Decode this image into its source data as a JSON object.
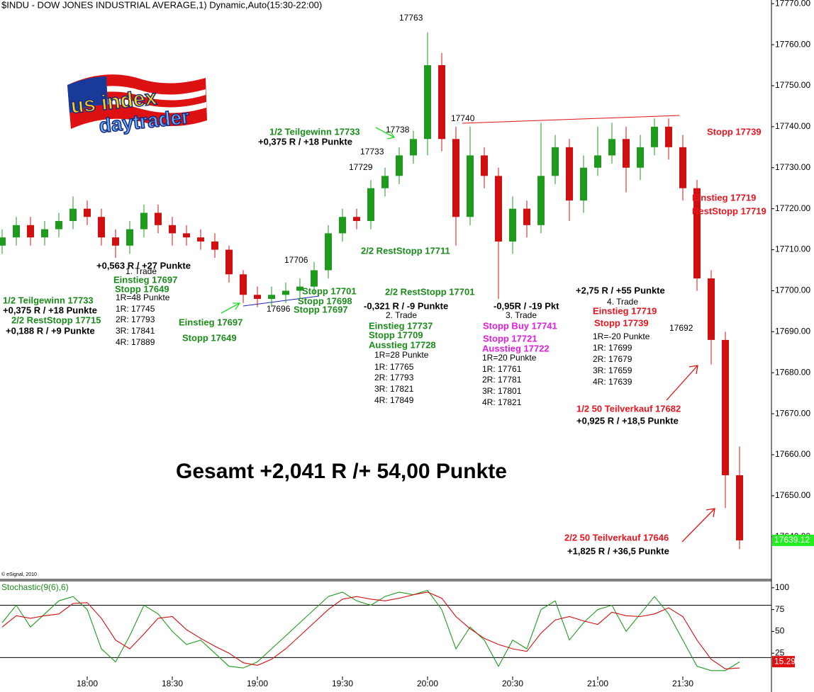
{
  "chart_data": [
    {
      "type": "candlestick",
      "title": "$INDU - DOW JONES INDUSTRIAL AVERAGE,1) Dynamic,Auto(15:30-22:00)",
      "source": "© eSignal, 2010",
      "x": [
        1050,
        1055,
        1060,
        1065,
        1070,
        1075,
        1080,
        1085,
        1090,
        1095,
        1100,
        1105,
        1110,
        1115,
        1120,
        1125,
        1130,
        1135,
        1140,
        1145,
        1150,
        1155,
        1160,
        1165,
        1170,
        1175,
        1180,
        1185,
        1190,
        1195,
        1200,
        1205,
        1210,
        1215,
        1220,
        1225,
        1230,
        1235,
        1240,
        1245,
        1250,
        1255,
        1260,
        1265,
        1270,
        1275,
        1280,
        1285,
        1290,
        1295,
        1300,
        1305,
        1310
      ],
      "open": [
        17711,
        17713,
        17716,
        17713,
        17715,
        17717,
        17720,
        17718,
        17713,
        17711,
        17715,
        17719,
        17716,
        17714,
        17713,
        17712,
        17710,
        17704,
        17699,
        17698,
        17699,
        17700,
        17701,
        17705,
        17714,
        17718,
        17717,
        17725,
        17728,
        17733,
        17737,
        17755,
        17737,
        17718,
        17733,
        17728,
        17712,
        17720,
        17716,
        17728,
        17735,
        17722,
        17730,
        17733,
        17737,
        17730,
        17735,
        17740,
        17735,
        17725,
        17703,
        17688,
        17655
      ],
      "high": [
        17715,
        17718,
        17718,
        17717,
        17719,
        17723,
        17722,
        17720,
        17715,
        17717,
        17721,
        17721,
        17718,
        17716,
        17715,
        17714,
        17711,
        17705,
        17701,
        17701,
        17702,
        17703,
        17707,
        17716,
        17720,
        17720,
        17727,
        17730,
        17735,
        17739,
        17763,
        17758,
        17740,
        17740,
        17735,
        17730,
        17723,
        17722,
        17741,
        17738,
        17737,
        17733,
        17740,
        17741,
        17740,
        17738,
        17742,
        17742,
        17738,
        17727,
        17705,
        17690,
        17662
      ],
      "low": [
        17709,
        17711,
        17711,
        17711,
        17713,
        17715,
        17716,
        17711,
        17708,
        17709,
        17713,
        17714,
        17711,
        17711,
        17710,
        17708,
        17702,
        17697,
        17696,
        17696,
        17697,
        17698,
        17699,
        17703,
        17712,
        17715,
        17715,
        17723,
        17726,
        17731,
        17733,
        17734,
        17711,
        17716,
        17725,
        17698,
        17709,
        17713,
        17714,
        17726,
        17717,
        17719,
        17728,
        17731,
        17724,
        17727,
        17733,
        17732,
        17722,
        17700,
        17682,
        17647,
        17637
      ],
      "close": [
        17713,
        17716,
        17713,
        17715,
        17717,
        17720,
        17718,
        17713,
        17711,
        17715,
        17719,
        17716,
        17714,
        17713,
        17712,
        17710,
        17704,
        17699,
        17698,
        17699,
        17700,
        17701,
        17705,
        17714,
        17718,
        17717,
        17725,
        17728,
        17733,
        17737,
        17755,
        17737,
        17718,
        17733,
        17728,
        17712,
        17720,
        17716,
        17728,
        17735,
        17722,
        17730,
        17733,
        17737,
        17730,
        17735,
        17740,
        17735,
        17725,
        17703,
        17688,
        17655,
        17639.12
      ],
      "up_color": "#1f9a1f",
      "down_color": "#d01010",
      "xlim": [
        1049.25,
        1321.25
      ],
      "xticks": [
        {
          "value": 1080,
          "label": "18:00"
        },
        {
          "value": 1110,
          "label": "18:30"
        },
        {
          "value": 1140,
          "label": "19:00"
        },
        {
          "value": 1170,
          "label": "19:30"
        },
        {
          "value": 1200,
          "label": "20:00"
        },
        {
          "value": 1230,
          "label": "20:30"
        },
        {
          "value": 1260,
          "label": "21:00"
        },
        {
          "value": 1290,
          "label": "21:30"
        }
      ],
      "ylim": [
        17629.6,
        17770.9
      ],
      "yticks": [
        {
          "value": 17770,
          "label": "17770.00"
        },
        {
          "value": 17760,
          "label": "17760.00"
        },
        {
          "value": 17750,
          "label": "17750.00"
        },
        {
          "value": 17740,
          "label": "17740.00"
        },
        {
          "value": 17730,
          "label": "17730.00"
        },
        {
          "value": 17720,
          "label": "17720.00"
        },
        {
          "value": 17710,
          "label": "17710.00"
        },
        {
          "value": 17700,
          "label": "17700.00"
        },
        {
          "value": 17690,
          "label": "17690.00"
        },
        {
          "value": 17680,
          "label": "17680.00"
        },
        {
          "value": 17670,
          "label": "17670.00"
        },
        {
          "value": 17660,
          "label": "17660.00"
        },
        {
          "value": 17650,
          "label": "17650.00"
        },
        {
          "value": 17640,
          "label": "17640.00"
        }
      ],
      "last_price": 17639.12
    },
    {
      "type": "line",
      "title": "Stochastic(9(6),6)",
      "x": [
        1050,
        1055,
        1060,
        1065,
        1070,
        1075,
        1080,
        1085,
        1090,
        1095,
        1100,
        1105,
        1110,
        1115,
        1120,
        1125,
        1130,
        1135,
        1140,
        1145,
        1150,
        1155,
        1160,
        1165,
        1170,
        1175,
        1180,
        1185,
        1190,
        1195,
        1200,
        1205,
        1210,
        1215,
        1220,
        1225,
        1230,
        1235,
        1240,
        1245,
        1250,
        1255,
        1260,
        1265,
        1270,
        1275,
        1280,
        1285,
        1290,
        1295,
        1300,
        1305,
        1310
      ],
      "series": [
        {
          "color": "#1f9a1f",
          "values": [
            60,
            80,
            55,
            70,
            85,
            90,
            75,
            30,
            15,
            45,
            80,
            70,
            50,
            35,
            40,
            25,
            10,
            8,
            15,
            30,
            45,
            60,
            75,
            90,
            95,
            85,
            80,
            90,
            95,
            92,
            97,
            75,
            30,
            55,
            40,
            10,
            40,
            30,
            75,
            85,
            40,
            60,
            75,
            80,
            50,
            70,
            90,
            70,
            40,
            10,
            5,
            5,
            15
          ]
        },
        {
          "color": "#d01010",
          "values": [
            55,
            68,
            65,
            68,
            70,
            82,
            83,
            65,
            40,
            30,
            47,
            65,
            67,
            52,
            42,
            33,
            25,
            14,
            11,
            18,
            30,
            45,
            60,
            75,
            87,
            90,
            87,
            85,
            88,
            92,
            95,
            88,
            67,
            53,
            42,
            35,
            30,
            27,
            48,
            63,
            67,
            62,
            58,
            72,
            68,
            67,
            70,
            77,
            67,
            40,
            18,
            7,
            8
          ]
        }
      ],
      "xlim": [
        1049.25,
        1321.25
      ],
      "ylim": [
        -19.5,
        108
      ],
      "yticks": [
        100,
        75,
        50,
        25
      ],
      "levels": [
        80,
        20
      ],
      "last_value": 15.29
    }
  ],
  "logo": {
    "line1": "us index",
    "line2": "daytrader"
  },
  "annotations": [
    {
      "text": "1/2 Teilgewinn 17733",
      "color": "#1a8c1a"
    },
    {
      "text": "+0,375 R / +18 Punkte",
      "color": "#000000"
    },
    {
      "text": "2/2 RestStopp 17715",
      "color": "#1a8c1a"
    },
    {
      "text": "+0,188 R / +9 Punkte",
      "color": "#000000"
    },
    {
      "text": "+0,563 R / +27 Punkte",
      "color": "#000000"
    },
    {
      "text": "1. Trade",
      "color": "#000000"
    },
    {
      "text": "Einstieg 17697",
      "color": "#1a8c1a"
    },
    {
      "text": "Stopp 17649",
      "color": "#1a8c1a"
    },
    {
      "text": "1R=48 Punkte",
      "color": "#000000"
    },
    {
      "text": "1R: 17745",
      "color": "#000000"
    },
    {
      "text": "2R: 17793",
      "color": "#000000"
    },
    {
      "text": "3R: 17841",
      "color": "#000000"
    },
    {
      "text": "4R: 17889",
      "color": "#000000"
    },
    {
      "text": "Einstieg 17697",
      "color": "#1a8c1a"
    },
    {
      "text": "Stopp 17649",
      "color": "#1a8c1a"
    },
    {
      "text": "17696",
      "color": "#000000"
    },
    {
      "text": "17706",
      "color": "#000000"
    },
    {
      "text": "Stopp 17701",
      "color": "#1a8c1a"
    },
    {
      "text": "Stopp 17698",
      "color": "#1a8c1a"
    },
    {
      "text": "Stopp 17697",
      "color": "#1a8c1a"
    },
    {
      "text": "1/2 Teilgewinn 17733",
      "color": "#1a8c1a"
    },
    {
      "text": "+0,375 R / +18 Punkte",
      "color": "#000000"
    },
    {
      "text": "17738",
      "color": "#000000"
    },
    {
      "text": "17733",
      "color": "#000000"
    },
    {
      "text": "17729",
      "color": "#000000"
    },
    {
      "text": "17763",
      "color": "#000000"
    },
    {
      "text": "2/2 RestStopp 17711",
      "color": "#1a8c1a"
    },
    {
      "text": "2/2 RestStopp 17701",
      "color": "#1a8c1a"
    },
    {
      "text": "-0,321 R / -9 Punkte",
      "color": "#000000"
    },
    {
      "text": "2. Trade",
      "color": "#000000"
    },
    {
      "text": "Einstieg 17737",
      "color": "#1a8c1a"
    },
    {
      "text": "Stopp 17709",
      "color": "#1a8c1a"
    },
    {
      "text": "Ausstieg 17728",
      "color": "#1a8c1a"
    },
    {
      "text": "1R=28 Punkte",
      "color": "#000000"
    },
    {
      "text": "1R: 17765",
      "color": "#000000"
    },
    {
      "text": "2R: 17793",
      "color": "#000000"
    },
    {
      "text": "3R: 17821",
      "color": "#000000"
    },
    {
      "text": "4R: 17849",
      "color": "#000000"
    },
    {
      "text": "17740",
      "color": "#000000"
    },
    {
      "text": "-0,95R / -19 Pkt",
      "color": "#000000"
    },
    {
      "text": "3. Trade",
      "color": "#000000"
    },
    {
      "text": "Stopp Buy 17741",
      "color": "#e01ee0"
    },
    {
      "text": "Stopp 17721",
      "color": "#e01ee0"
    },
    {
      "text": "Ausstieg 17722",
      "color": "#e01ee0"
    },
    {
      "text": "1R=20 Punkte",
      "color": "#000000"
    },
    {
      "text": "1R: 17761",
      "color": "#000000"
    },
    {
      "text": "2R: 17781",
      "color": "#000000"
    },
    {
      "text": "3R: 17801",
      "color": "#000000"
    },
    {
      "text": "4R: 17821",
      "color": "#000000"
    },
    {
      "text": "+2,75 R / +55 Punkte",
      "color": "#000000"
    },
    {
      "text": "4. Trade",
      "color": "#000000"
    },
    {
      "text": "Einstieg 17719",
      "color": "#e8141e"
    },
    {
      "text": "Stopp 17739",
      "color": "#e8141e"
    },
    {
      "text": "1R=-20 Punkte",
      "color": "#000000"
    },
    {
      "text": "1R: 17699",
      "color": "#000000"
    },
    {
      "text": "2R: 17679",
      "color": "#000000"
    },
    {
      "text": "3R: 17659",
      "color": "#000000"
    },
    {
      "text": "4R: 17639",
      "color": "#000000"
    },
    {
      "text": "17692",
      "color": "#000000"
    },
    {
      "text": "Stopp 17739",
      "color": "#e8141e"
    },
    {
      "text": "Einstieg 17719",
      "color": "#e8141e"
    },
    {
      "text": "RestStopp 17719",
      "color": "#e8141e"
    },
    {
      "text": "1/2 50 Teilverkauf 17682",
      "color": "#e8141e"
    },
    {
      "text": "+0,925 R / +18,5 Punkte",
      "color": "#000000"
    },
    {
      "text": "2/2 50 Teilverkauf 17646",
      "color": "#e8141e"
    },
    {
      "text": "+1,825 R / +36,5 Punkte",
      "color": "#000000"
    },
    {
      "text": "Gesamt +2,041 R /+ 54,00 Punkte",
      "color": "#000000"
    }
  ]
}
